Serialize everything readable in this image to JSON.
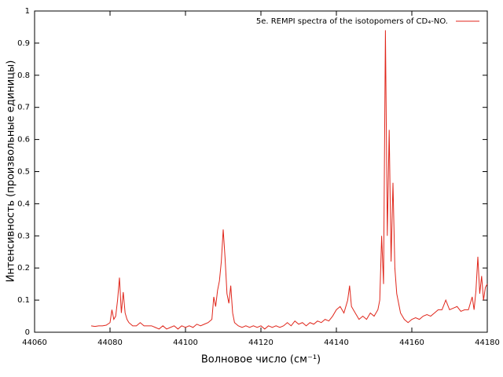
{
  "chart_data": {
    "type": "line",
    "xlabel": "Волновое число (см⁻¹)",
    "ylabel": "Интенсивность (произвольные единицы)",
    "legend": "top-right",
    "xlim": [
      44060,
      44180
    ],
    "xticks": [
      44060,
      44080,
      44100,
      44120,
      44140,
      44160,
      44180
    ],
    "ylim": [
      0,
      1
    ],
    "yticks": [
      0,
      0.1,
      0.2,
      0.3,
      0.4,
      0.5,
      0.6,
      0.7,
      0.8,
      0.9,
      1
    ],
    "x": [
      44075,
      44076,
      44077,
      44078,
      44079,
      44080,
      44080.5,
      44081,
      44081.5,
      44082,
      44082.5,
      44083,
      44083.5,
      44084,
      44084.5,
      44085,
      44086,
      44087,
      44088,
      44089,
      44090,
      44091,
      44092,
      44093,
      44094,
      44095,
      44096,
      44097,
      44098,
      44099,
      44100,
      44101,
      44102,
      44103,
      44104,
      44105,
      44106,
      44107,
      44107.5,
      44108,
      44108.5,
      44109,
      44109.5,
      44110,
      44110.5,
      44111,
      44111.5,
      44112,
      44112.5,
      44113,
      44114,
      44115,
      44116,
      44117,
      44118,
      44119,
      44120,
      44121,
      44122,
      44123,
      44124,
      44125,
      44126,
      44127,
      44128,
      44129,
      44130,
      44131,
      44132,
      44133,
      44134,
      44135,
      44136,
      44137,
      44138,
      44139,
      44140,
      44141,
      44142,
      44143,
      44143.5,
      44144,
      44145,
      44146,
      44147,
      44148,
      44149,
      44150,
      44151,
      44151.5,
      44152,
      44152.5,
      44153,
      44153.5,
      44154,
      44154.5,
      44155,
      44155.5,
      44156,
      44157,
      44158,
      44159,
      44160,
      44161,
      44162,
      44163,
      44164,
      44165,
      44166,
      44167,
      44168,
      44169,
      44170,
      44171,
      44172,
      44173,
      44174,
      44175,
      44176,
      44176.5,
      44177,
      44177.5,
      44178,
      44178.5,
      44179,
      44179.5,
      44180
    ],
    "series": [
      {
        "name": "5e. REMPI spectra of the isotopomers of CD₄-NO.",
        "color": "#e0261b",
        "values": [
          0.02,
          0.018,
          0.02,
          0.02,
          0.022,
          0.03,
          0.07,
          0.04,
          0.05,
          0.1,
          0.17,
          0.06,
          0.125,
          0.06,
          0.04,
          0.03,
          0.02,
          0.02,
          0.03,
          0.02,
          0.02,
          0.02,
          0.015,
          0.01,
          0.02,
          0.01,
          0.015,
          0.02,
          0.01,
          0.02,
          0.015,
          0.02,
          0.015,
          0.025,
          0.02,
          0.025,
          0.03,
          0.04,
          0.11,
          0.08,
          0.13,
          0.16,
          0.22,
          0.32,
          0.23,
          0.12,
          0.09,
          0.145,
          0.06,
          0.03,
          0.02,
          0.015,
          0.02,
          0.015,
          0.02,
          0.015,
          0.02,
          0.01,
          0.02,
          0.015,
          0.02,
          0.015,
          0.02,
          0.03,
          0.02,
          0.035,
          0.025,
          0.03,
          0.02,
          0.03,
          0.025,
          0.035,
          0.03,
          0.04,
          0.035,
          0.05,
          0.07,
          0.08,
          0.06,
          0.1,
          0.145,
          0.08,
          0.06,
          0.04,
          0.05,
          0.04,
          0.06,
          0.05,
          0.07,
          0.1,
          0.3,
          0.15,
          0.94,
          0.3,
          0.63,
          0.22,
          0.465,
          0.2,
          0.12,
          0.06,
          0.04,
          0.03,
          0.04,
          0.045,
          0.04,
          0.05,
          0.055,
          0.05,
          0.06,
          0.07,
          0.07,
          0.1,
          0.07,
          0.075,
          0.08,
          0.065,
          0.07,
          0.07,
          0.11,
          0.07,
          0.13,
          0.235,
          0.12,
          0.175,
          0.1,
          0.14,
          0.15
        ]
      }
    ]
  }
}
